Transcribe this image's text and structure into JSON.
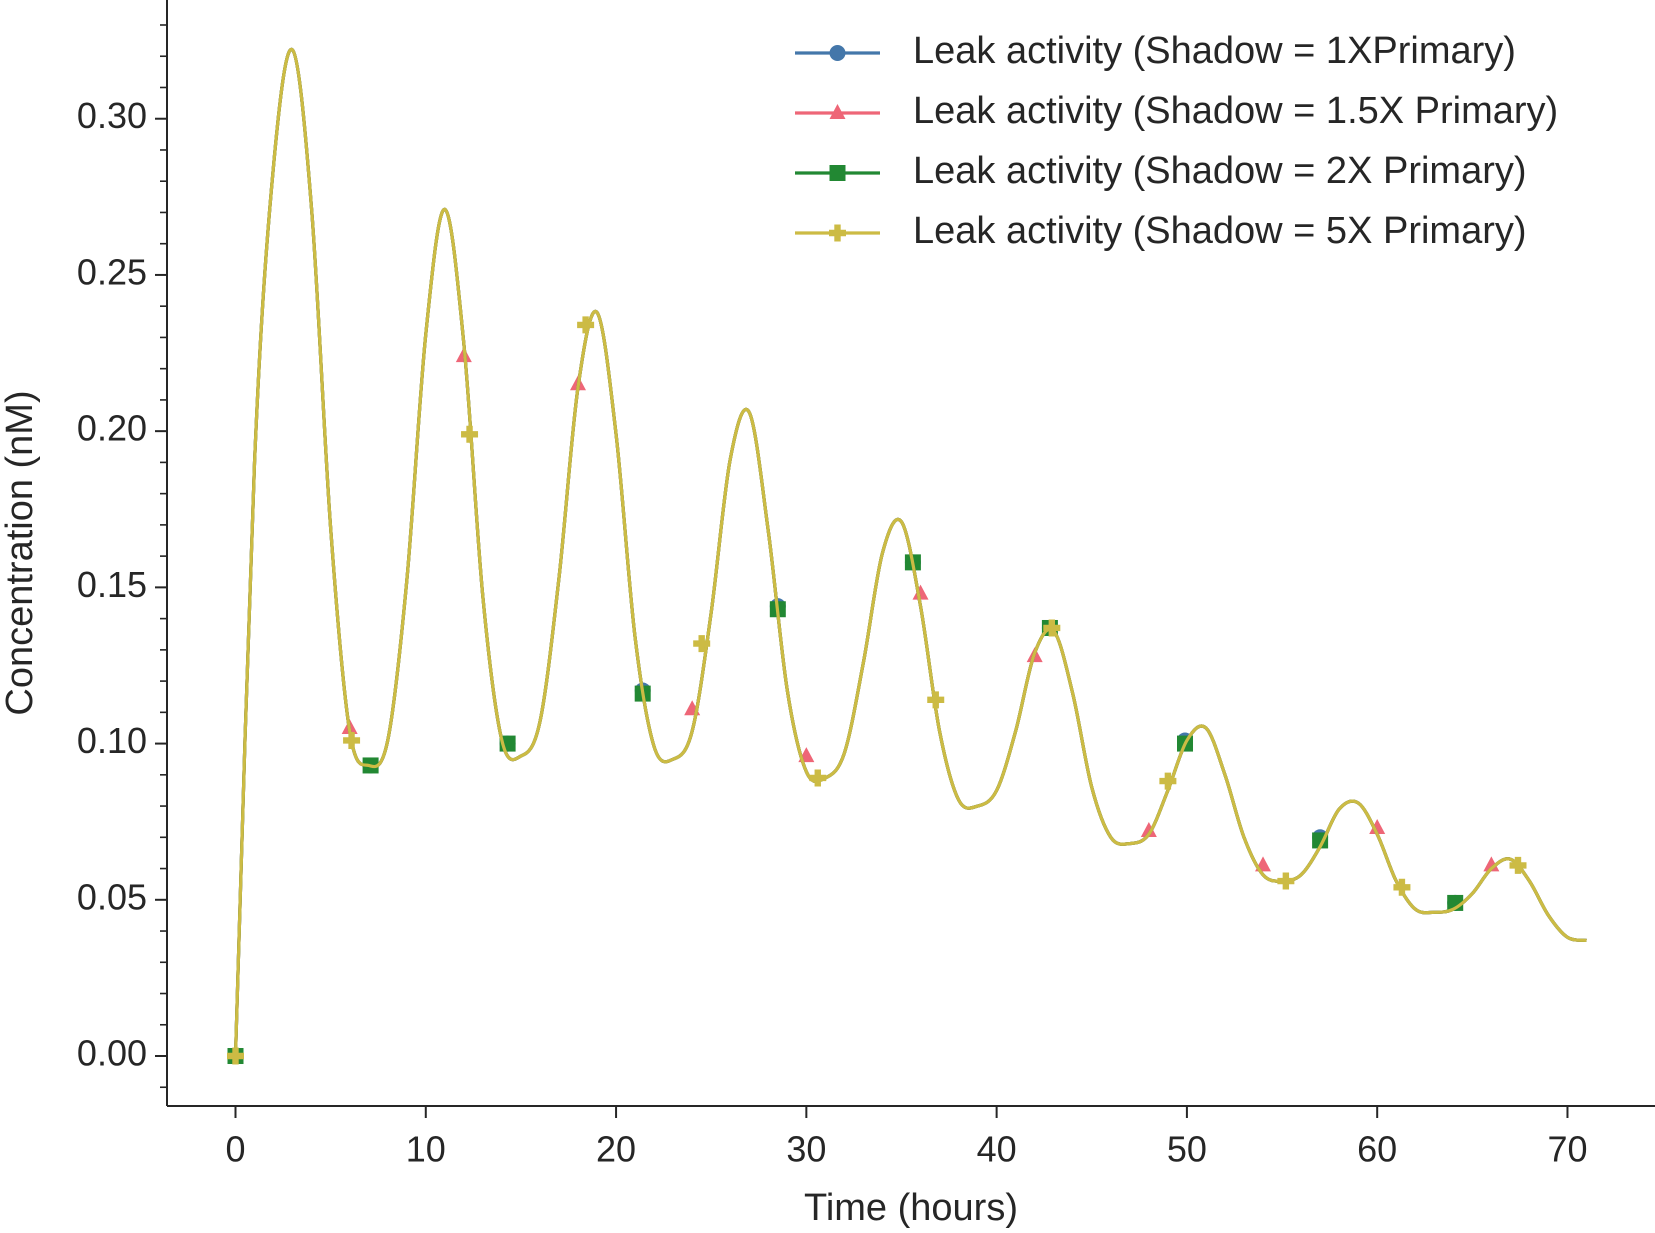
{
  "chart_data": {
    "type": "line",
    "xlabel": "Time (hours)",
    "ylabel": "Concentration (nM)",
    "xlim": [
      -3.6,
      74.6
    ],
    "ylim": [
      -0.016,
      0.338
    ],
    "xticks": [
      0,
      10,
      20,
      30,
      40,
      50,
      60,
      70
    ],
    "yticks": [
      {
        "value": 0,
        "label": "0.00"
      },
      {
        "value": 0.05,
        "label": "0.05"
      },
      {
        "value": 0.1,
        "label": "0.10"
      },
      {
        "value": 0.15,
        "label": "0.15"
      },
      {
        "value": 0.2,
        "label": "0.20"
      },
      {
        "value": 0.25,
        "label": "0.25"
      },
      {
        "value": 0.3,
        "label": "0.30"
      }
    ],
    "yminorticks": [
      -0.01,
      0.01,
      0.02,
      0.03,
      0.04,
      0.06,
      0.07,
      0.08,
      0.09,
      0.11,
      0.12,
      0.13,
      0.14,
      0.16,
      0.17,
      0.18,
      0.19,
      0.21,
      0.22,
      0.23,
      0.24,
      0.26,
      0.27,
      0.28,
      0.29,
      0.31,
      0.32,
      0.33
    ],
    "legend": "upper right",
    "grid": false,
    "x": [
      0,
      1,
      2,
      3,
      4,
      5,
      6,
      7,
      8,
      9,
      10,
      11,
      12,
      13,
      14,
      15,
      16,
      17,
      18,
      19,
      20,
      21,
      22,
      23,
      24,
      25,
      26,
      27,
      28,
      29,
      30,
      31,
      32,
      33,
      34,
      35,
      36,
      37,
      38,
      39,
      40,
      41,
      42,
      43,
      44,
      45,
      46,
      47,
      48,
      49,
      50,
      51,
      52,
      53,
      54,
      55,
      56,
      57,
      58,
      59,
      60,
      61,
      62,
      63,
      64,
      65,
      66,
      67,
      68,
      69,
      70,
      71
    ],
    "series": [
      {
        "name": "Leak activity (Shadow = 1XPrimary)",
        "color": "#4477aa",
        "marker": "circle",
        "values": [
          0,
          0.19,
          0.285,
          0.322,
          0.271,
          0.169,
          0.104,
          0.093,
          0.101,
          0.152,
          0.231,
          0.271,
          0.228,
          0.147,
          0.101,
          0.096,
          0.107,
          0.153,
          0.214,
          0.238,
          0.199,
          0.134,
          0.099,
          0.095,
          0.104,
          0.142,
          0.191,
          0.206,
          0.168,
          0.117,
          0.091,
          0.089,
          0.097,
          0.126,
          0.161,
          0.171,
          0.144,
          0.104,
          0.082,
          0.08,
          0.085,
          0.104,
          0.129,
          0.136,
          0.116,
          0.086,
          0.07,
          0.068,
          0.071,
          0.085,
          0.101,
          0.105,
          0.09,
          0.07,
          0.058,
          0.056,
          0.058,
          0.067,
          0.079,
          0.081,
          0.071,
          0.056,
          0.047,
          0.046,
          0.047,
          0.052,
          0.06,
          0.063,
          0.056,
          0.045,
          0.038,
          0.037
        ],
        "markers": {
          "x": [
            0,
            7.1,
            14.3,
            21.4,
            28.5,
            35.6,
            42.8,
            49.9,
            57,
            64.1
          ],
          "values": [
            0,
            0.093,
            0.1,
            0.117,
            0.144,
            0.158,
            0.137,
            0.101,
            0.07,
            0.049
          ]
        }
      },
      {
        "name": "Leak activity (Shadow = 1.5X Primary)",
        "color": "#ee6677",
        "marker": "triangle",
        "values": [
          0,
          0.19,
          0.285,
          0.322,
          0.271,
          0.169,
          0.104,
          0.093,
          0.101,
          0.152,
          0.231,
          0.271,
          0.228,
          0.147,
          0.101,
          0.096,
          0.107,
          0.153,
          0.214,
          0.238,
          0.199,
          0.134,
          0.099,
          0.095,
          0.104,
          0.142,
          0.191,
          0.206,
          0.168,
          0.117,
          0.091,
          0.089,
          0.097,
          0.126,
          0.161,
          0.171,
          0.144,
          0.104,
          0.082,
          0.08,
          0.085,
          0.104,
          0.129,
          0.136,
          0.116,
          0.086,
          0.07,
          0.068,
          0.071,
          0.085,
          0.101,
          0.105,
          0.09,
          0.07,
          0.058,
          0.056,
          0.058,
          0.067,
          0.079,
          0.081,
          0.071,
          0.056,
          0.047,
          0.046,
          0.047,
          0.052,
          0.06,
          0.063,
          0.056,
          0.045,
          0.038,
          0.037
        ],
        "markers": {
          "x": [
            0,
            6,
            12,
            18,
            24,
            30,
            36,
            42,
            48,
            54,
            60,
            66
          ],
          "values": [
            0,
            0.105,
            0.224,
            0.215,
            0.111,
            0.096,
            0.148,
            0.128,
            0.072,
            0.061,
            0.073,
            0.061
          ]
        }
      },
      {
        "name": "Leak activity (Shadow = 2X Primary)",
        "color": "#228833",
        "marker": "square",
        "values": [
          0,
          0.19,
          0.285,
          0.322,
          0.271,
          0.169,
          0.104,
          0.093,
          0.101,
          0.152,
          0.231,
          0.271,
          0.228,
          0.147,
          0.101,
          0.096,
          0.107,
          0.153,
          0.214,
          0.238,
          0.199,
          0.134,
          0.099,
          0.095,
          0.104,
          0.142,
          0.191,
          0.206,
          0.168,
          0.117,
          0.091,
          0.089,
          0.097,
          0.126,
          0.161,
          0.171,
          0.144,
          0.104,
          0.082,
          0.08,
          0.085,
          0.104,
          0.129,
          0.136,
          0.116,
          0.086,
          0.07,
          0.068,
          0.071,
          0.085,
          0.101,
          0.105,
          0.09,
          0.07,
          0.058,
          0.056,
          0.058,
          0.067,
          0.079,
          0.081,
          0.071,
          0.056,
          0.047,
          0.046,
          0.047,
          0.052,
          0.06,
          0.063,
          0.056,
          0.045,
          0.038,
          0.037
        ],
        "markers": {
          "x": [
            0,
            7.1,
            14.3,
            21.4,
            28.5,
            35.6,
            42.8,
            49.9,
            57,
            64.1
          ],
          "values": [
            0,
            0.093,
            0.1,
            0.116,
            0.143,
            0.158,
            0.137,
            0.1,
            0.069,
            0.049
          ]
        }
      },
      {
        "name": "Leak activity (Shadow = 5X Primary)",
        "color": "#ccbb44",
        "marker": "plus",
        "values": [
          0,
          0.19,
          0.285,
          0.322,
          0.271,
          0.169,
          0.104,
          0.093,
          0.101,
          0.152,
          0.231,
          0.271,
          0.228,
          0.147,
          0.101,
          0.096,
          0.107,
          0.153,
          0.214,
          0.238,
          0.199,
          0.134,
          0.099,
          0.095,
          0.104,
          0.142,
          0.191,
          0.206,
          0.168,
          0.117,
          0.091,
          0.089,
          0.097,
          0.126,
          0.161,
          0.171,
          0.144,
          0.104,
          0.082,
          0.08,
          0.085,
          0.104,
          0.129,
          0.136,
          0.116,
          0.086,
          0.07,
          0.068,
          0.071,
          0.085,
          0.101,
          0.105,
          0.09,
          0.07,
          0.058,
          0.056,
          0.058,
          0.067,
          0.079,
          0.081,
          0.071,
          0.056,
          0.047,
          0.046,
          0.047,
          0.052,
          0.06,
          0.063,
          0.056,
          0.045,
          0.038,
          0.037
        ],
        "markers": {
          "x": [
            0,
            6.1,
            12.3,
            18.4,
            24.5,
            30.6,
            36.8,
            42.9,
            49,
            55.2,
            61.3,
            67.4
          ],
          "values": [
            0,
            0.101,
            0.199,
            0.234,
            0.132,
            0.089,
            0.114,
            0.137,
            0.088,
            0.056,
            0.054,
            0.061
          ]
        }
      }
    ]
  }
}
